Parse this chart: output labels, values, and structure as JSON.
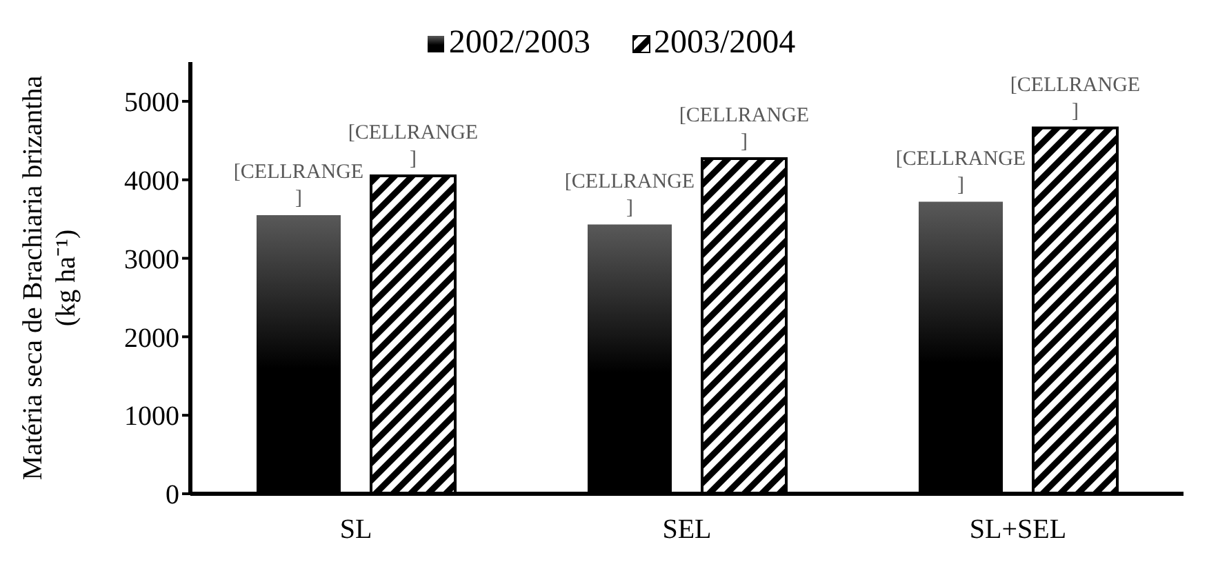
{
  "chart_data": {
    "type": "bar",
    "ylabel": "Matéria seca de Brachiaria brizantha (kg ha⁻¹)",
    "categories": [
      "SL",
      "SEL",
      "SL+SEL"
    ],
    "series": [
      {
        "name": "2002/2003",
        "color": "#000000",
        "values": [
          3550,
          3430,
          3720
        ],
        "value_labels": [
          "[CELLRANGE ]",
          "[CELLRANGE ]",
          "[CELLRANGE ]"
        ]
      },
      {
        "name": "2003/2004",
        "color": "#000000",
        "values": [
          4050,
          4270,
          4660
        ],
        "value_labels": [
          "[CELLRANGE ]",
          "[CELLRANGE ]",
          "[CELLRANGE ]"
        ]
      }
    ],
    "ylim": [
      0,
      5500
    ],
    "yticks": [
      0,
      1000,
      2000,
      3000,
      4000,
      5000
    ],
    "grid": false,
    "legend": "top"
  }
}
